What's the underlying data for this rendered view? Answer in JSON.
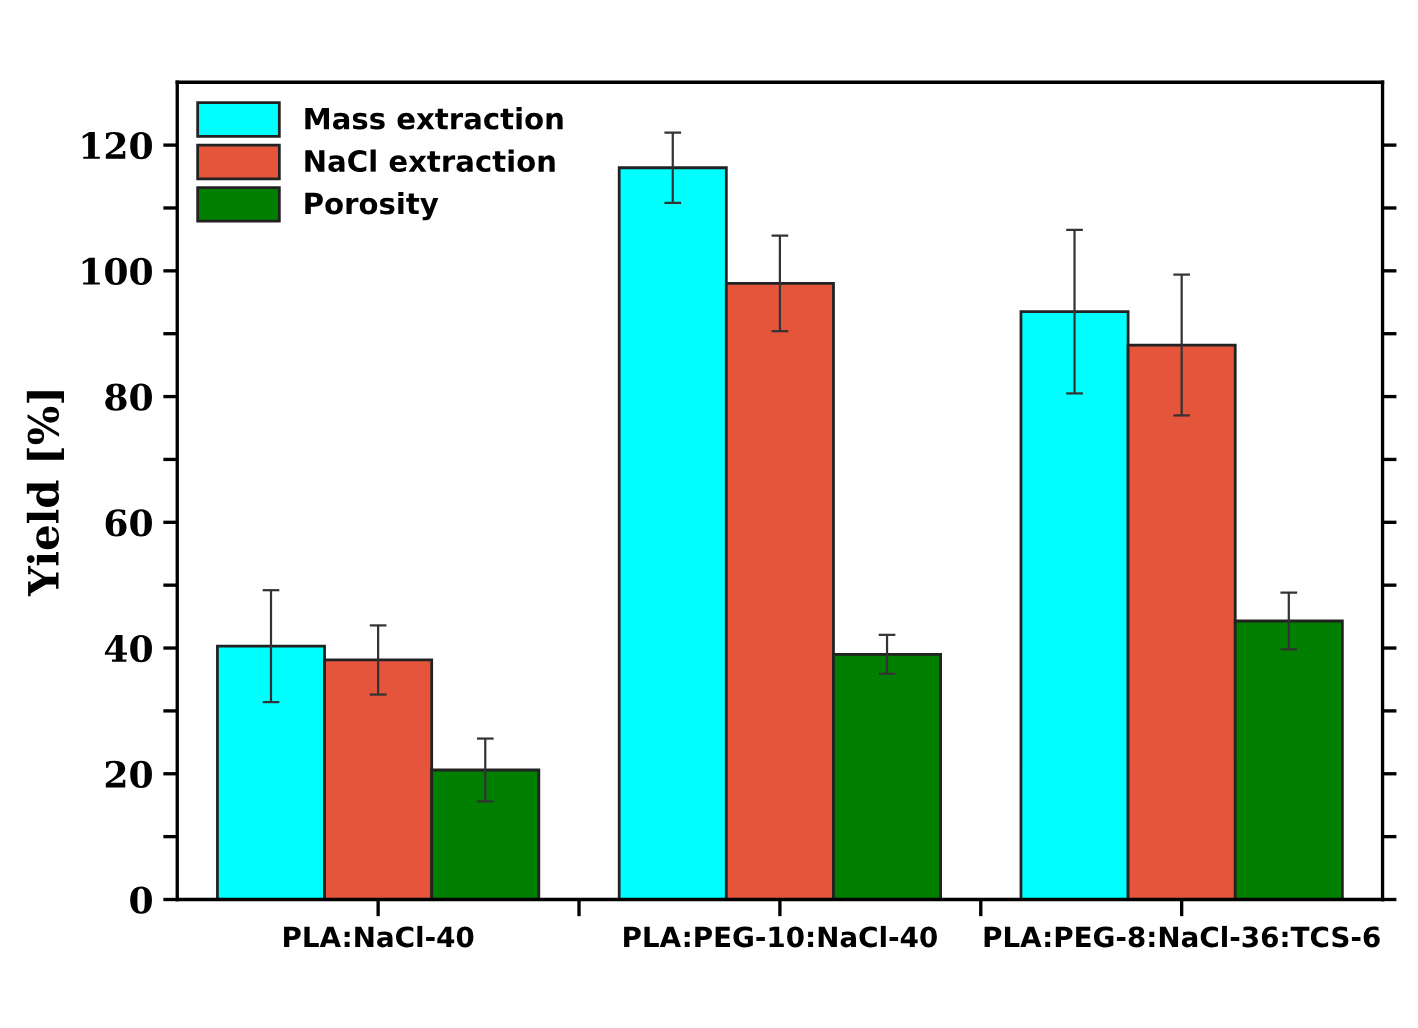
{
  "chart_data": {
    "type": "bar",
    "ylabel": "Yield [%]",
    "categories": [
      "PLA:NaCl-40",
      "PLA:PEG-10:NaCl-40",
      "PLA:PEG-8:NaCl-36:TCS-6"
    ],
    "series": [
      {
        "name": "Mass extraction",
        "color": "#00ffff",
        "values": [
          40.3,
          116.4,
          93.5
        ],
        "errors": [
          8.9,
          5.6,
          13.0
        ]
      },
      {
        "name": "NaCl extraction",
        "color": "#e5553c",
        "values": [
          38.1,
          98.0,
          88.2
        ],
        "errors": [
          5.5,
          7.6,
          11.2
        ]
      },
      {
        "name": "Porosity",
        "color": "#007f00",
        "values": [
          20.6,
          39.0,
          44.3
        ],
        "errors": [
          5.0,
          3.1,
          4.5
        ]
      }
    ],
    "ylim": [
      0,
      130
    ],
    "yticks": [
      0,
      {
        "value": 10,
        "label": null
      },
      20,
      {
        "value": 30,
        "label": null
      },
      40,
      {
        "value": 50,
        "label": null
      },
      60,
      {
        "value": 70,
        "label": null
      },
      80,
      {
        "value": 90,
        "label": null
      },
      100,
      {
        "value": 110,
        "label": null
      },
      120
    ],
    "grid": false,
    "legend": "top left"
  }
}
